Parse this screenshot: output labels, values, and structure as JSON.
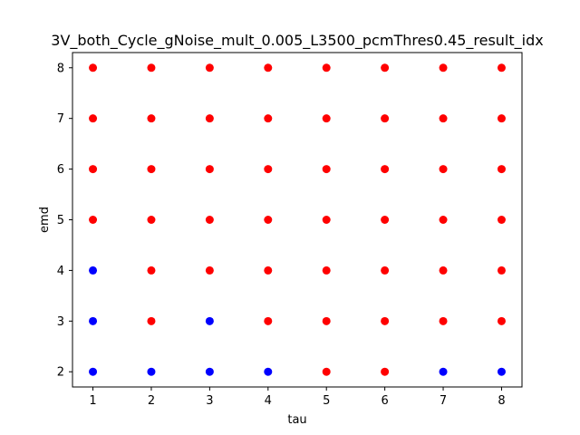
{
  "chart_data": {
    "type": "scatter",
    "title": "3V_both_Cycle_gNoise_mult_0.005_L3500_pcmThres0.45_result_idx",
    "xlabel": "tau",
    "ylabel": "emd",
    "xlim": [
      0.65,
      8.35
    ],
    "ylim": [
      1.7,
      8.3
    ],
    "x_ticks": [
      "1",
      "2",
      "3",
      "4",
      "5",
      "6",
      "7",
      "8"
    ],
    "y_ticks": [
      "2",
      "3",
      "4",
      "5",
      "6",
      "7",
      "8"
    ],
    "grid": false,
    "legend": "none",
    "colors": {
      "blue": "#0000ff",
      "red": "#ff0000"
    },
    "series": [
      {
        "color": "#0000ff",
        "points": [
          {
            "x": 1,
            "y": 2
          },
          {
            "x": 1,
            "y": 3
          },
          {
            "x": 1,
            "y": 4
          },
          {
            "x": 2,
            "y": 2
          },
          {
            "x": 3,
            "y": 2
          },
          {
            "x": 3,
            "y": 3
          },
          {
            "x": 4,
            "y": 2
          },
          {
            "x": 7,
            "y": 2
          },
          {
            "x": 8,
            "y": 2
          }
        ]
      },
      {
        "color": "#ff0000",
        "points": [
          {
            "x": 1,
            "y": 5
          },
          {
            "x": 1,
            "y": 6
          },
          {
            "x": 1,
            "y": 7
          },
          {
            "x": 1,
            "y": 8
          },
          {
            "x": 2,
            "y": 3
          },
          {
            "x": 2,
            "y": 4
          },
          {
            "x": 2,
            "y": 5
          },
          {
            "x": 2,
            "y": 6
          },
          {
            "x": 2,
            "y": 7
          },
          {
            "x": 2,
            "y": 8
          },
          {
            "x": 3,
            "y": 4
          },
          {
            "x": 3,
            "y": 5
          },
          {
            "x": 3,
            "y": 6
          },
          {
            "x": 3,
            "y": 7
          },
          {
            "x": 3,
            "y": 8
          },
          {
            "x": 4,
            "y": 3
          },
          {
            "x": 4,
            "y": 4
          },
          {
            "x": 4,
            "y": 5
          },
          {
            "x": 4,
            "y": 6
          },
          {
            "x": 4,
            "y": 7
          },
          {
            "x": 4,
            "y": 8
          },
          {
            "x": 5,
            "y": 2
          },
          {
            "x": 5,
            "y": 3
          },
          {
            "x": 5,
            "y": 4
          },
          {
            "x": 5,
            "y": 5
          },
          {
            "x": 5,
            "y": 6
          },
          {
            "x": 5,
            "y": 7
          },
          {
            "x": 5,
            "y": 8
          },
          {
            "x": 6,
            "y": 2
          },
          {
            "x": 6,
            "y": 3
          },
          {
            "x": 6,
            "y": 4
          },
          {
            "x": 6,
            "y": 5
          },
          {
            "x": 6,
            "y": 6
          },
          {
            "x": 6,
            "y": 7
          },
          {
            "x": 6,
            "y": 8
          },
          {
            "x": 7,
            "y": 3
          },
          {
            "x": 7,
            "y": 4
          },
          {
            "x": 7,
            "y": 5
          },
          {
            "x": 7,
            "y": 6
          },
          {
            "x": 7,
            "y": 7
          },
          {
            "x": 7,
            "y": 8
          },
          {
            "x": 8,
            "y": 3
          },
          {
            "x": 8,
            "y": 4
          },
          {
            "x": 8,
            "y": 5
          },
          {
            "x": 8,
            "y": 6
          },
          {
            "x": 8,
            "y": 7
          },
          {
            "x": 8,
            "y": 8
          }
        ]
      }
    ]
  }
}
